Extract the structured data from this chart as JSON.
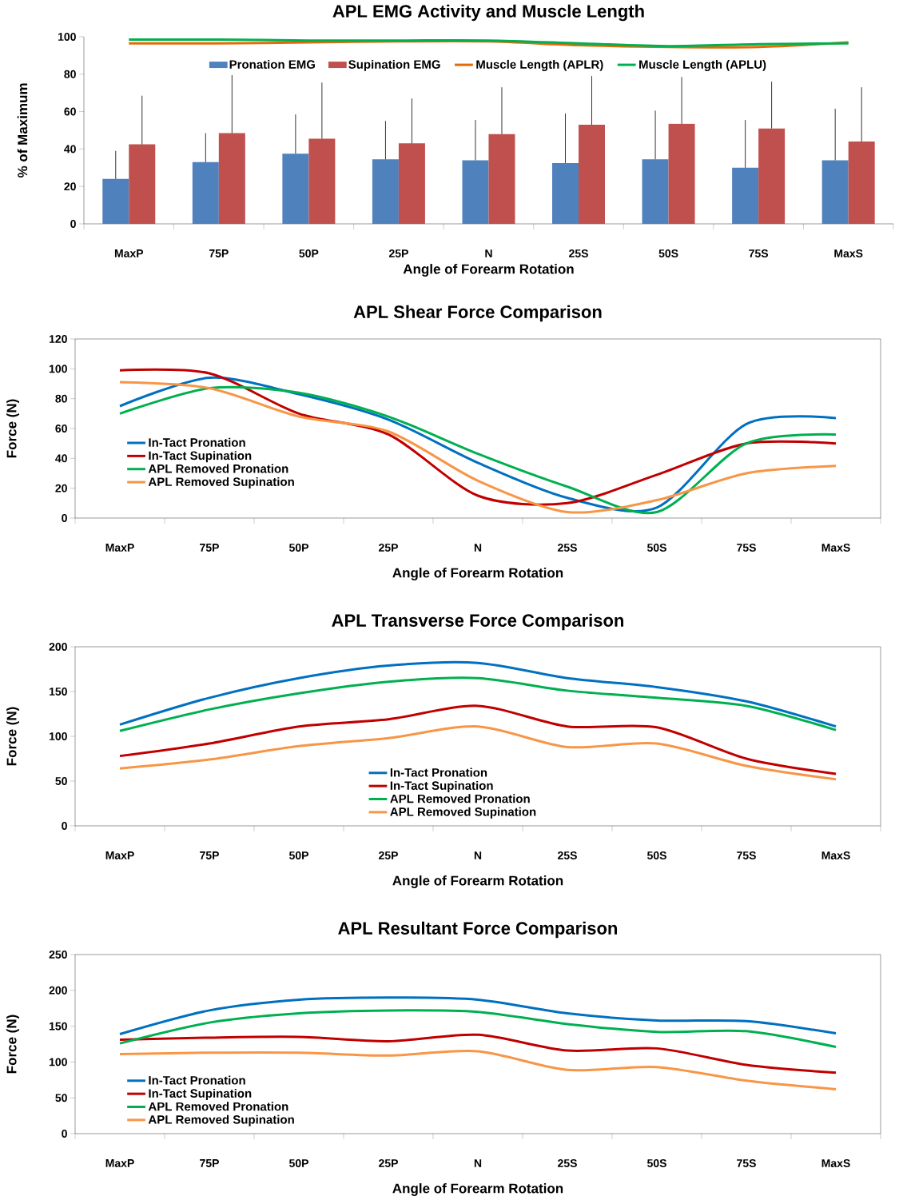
{
  "chart_data": [
    {
      "type": "bar",
      "title": "APL EMG Activity and Muscle Length",
      "xlabel": "Angle of Forearm Rotation",
      "ylabel": "% of Maximum",
      "categories": [
        "MaxP",
        "75P",
        "50P",
        "25P",
        "N",
        "25S",
        "50S",
        "75S",
        "MaxS"
      ],
      "ylim": [
        0,
        100
      ],
      "yticks": [
        0,
        20,
        40,
        60,
        80,
        100
      ],
      "legend": "top",
      "grid": false,
      "series": [
        {
          "name": "Pronation EMG",
          "color": "#4f81bd",
          "values": [
            24,
            33,
            37.5,
            34.5,
            34,
            32.5,
            34.5,
            30,
            34
          ],
          "errors": [
            [
              24,
              39
            ],
            [
              33,
              48.5
            ],
            [
              37.5,
              58.5
            ],
            [
              34.5,
              55
            ],
            [
              34,
              55.5
            ],
            [
              32.5,
              59
            ],
            [
              34.5,
              60.5
            ],
            [
              30,
              55.5
            ],
            [
              34,
              61.5
            ]
          ]
        },
        {
          "name": "Supination EMG",
          "color": "#c0504d",
          "values": [
            42.5,
            48.5,
            45.5,
            43,
            48,
            53,
            53.5,
            51,
            44
          ],
          "errors": [
            [
              42.5,
              68.5
            ],
            [
              48.5,
              79.5
            ],
            [
              45.5,
              75.5
            ],
            [
              43,
              67
            ],
            [
              48,
              73
            ],
            [
              53,
              79
            ],
            [
              53.5,
              78.5
            ],
            [
              51,
              76
            ],
            [
              44,
              73
            ]
          ]
        },
        {
          "name": "Muscle Length (APLR)",
          "type": "line",
          "color": "#e36c09",
          "values": [
            96.5,
            96.5,
            97,
            97.5,
            97.5,
            95.5,
            94.5,
            94.5,
            97
          ]
        },
        {
          "name": "Muscle Length (APLU)",
          "type": "line",
          "color": "#00b050",
          "values": [
            98.5,
            98.5,
            98,
            98,
            98,
            96.5,
            95,
            96,
            96.5
          ]
        }
      ]
    },
    {
      "type": "line",
      "title": "APL Shear Force Comparison",
      "xlabel": "Angle of Forearm Rotation",
      "ylabel": "Force (N)",
      "categories": [
        "MaxP",
        "75P",
        "50P",
        "25P",
        "N",
        "25S",
        "50S",
        "75S",
        "MaxS"
      ],
      "ylim": [
        0,
        120
      ],
      "yticks": [
        0,
        20,
        40,
        60,
        80,
        100,
        120
      ],
      "legend": "left",
      "grid": false,
      "series": [
        {
          "name": "In-Tact Pronation",
          "color": "#0070c0",
          "values": [
            75,
            94,
            83,
            66,
            37,
            13.5,
            7,
            63,
            67
          ]
        },
        {
          "name": "In-Tact Supination",
          "color": "#c00000",
          "values": [
            99,
            97,
            70,
            56,
            15,
            10,
            29,
            50,
            50
          ]
        },
        {
          "name": "APL Removed Pronation",
          "color": "#00b050",
          "values": [
            70,
            87,
            84,
            68,
            43,
            21,
            4,
            50,
            56
          ]
        },
        {
          "name": "APL Removed Supination",
          "color": "#f79646",
          "values": [
            91,
            87,
            68,
            58,
            25,
            4,
            12,
            30,
            35
          ]
        }
      ]
    },
    {
      "type": "line",
      "title": "APL Transverse Force Comparison",
      "xlabel": "Angle of Forearm Rotation",
      "ylabel": "Force (N)",
      "categories": [
        "MaxP",
        "75P",
        "50P",
        "25P",
        "N",
        "25S",
        "50S",
        "75S",
        "MaxS"
      ],
      "ylim": [
        0,
        200
      ],
      "yticks": [
        0,
        50,
        100,
        150,
        200
      ],
      "legend": "bottom",
      "grid": false,
      "series": [
        {
          "name": "In-Tact Pronation",
          "color": "#0070c0",
          "values": [
            113,
            143,
            165,
            179,
            182,
            165,
            155,
            139,
            111
          ]
        },
        {
          "name": "In-Tact Supination",
          "color": "#c00000",
          "values": [
            78,
            92,
            111,
            119,
            134,
            111,
            110,
            75,
            58
          ]
        },
        {
          "name": "APL Removed Pronation",
          "color": "#00b050",
          "values": [
            106,
            130,
            148,
            161,
            165,
            151,
            143,
            134,
            107
          ]
        },
        {
          "name": "APL Removed Supination",
          "color": "#f79646",
          "values": [
            64,
            74,
            89,
            98,
            111,
            88,
            92,
            67,
            52
          ]
        }
      ]
    },
    {
      "type": "line",
      "title": "APL Resultant  Force Comparison",
      "xlabel": "Angle of Forearm Rotation",
      "ylabel": "Force (N)",
      "categories": [
        "MaxP",
        "75P",
        "50P",
        "25P",
        "N",
        "25S",
        "50S",
        "75S",
        "MaxS"
      ],
      "ylim": [
        0,
        250
      ],
      "yticks": [
        0,
        50,
        100,
        150,
        200,
        250
      ],
      "legend": "bottom left",
      "grid": false,
      "series": [
        {
          "name": "In-Tact Pronation",
          "color": "#0070c0",
          "values": [
            139,
            172,
            187,
            190,
            187,
            168,
            158,
            157,
            140
          ]
        },
        {
          "name": "In-Tact Supination",
          "color": "#c00000",
          "values": [
            131,
            134,
            135,
            129,
            138,
            116,
            119,
            96,
            85
          ]
        },
        {
          "name": "APL Removed Pronation",
          "color": "#00b050",
          "values": [
            126,
            155,
            168,
            172,
            170,
            153,
            142,
            143,
            121
          ]
        },
        {
          "name": "APL Removed Supination",
          "color": "#f79646",
          "values": [
            111,
            113,
            113,
            109,
            115,
            89,
            93,
            74,
            62
          ]
        }
      ]
    }
  ]
}
